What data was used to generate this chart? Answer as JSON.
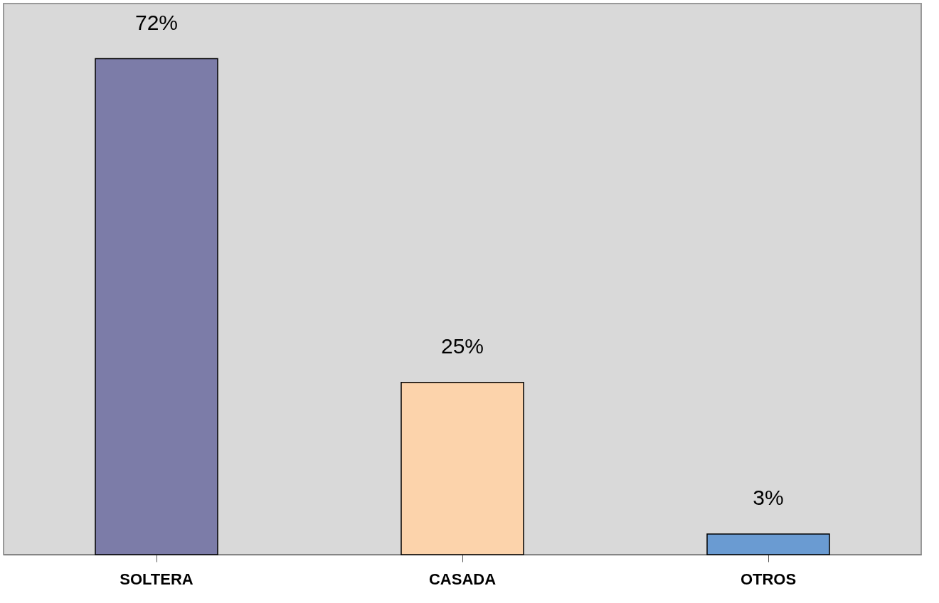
{
  "chart_data": {
    "type": "bar",
    "categories": [
      "SOLTERA",
      "CASADA",
      "OTROS"
    ],
    "values": [
      72,
      25,
      3
    ],
    "value_labels": [
      "72%",
      "25%",
      "3%"
    ],
    "colors": [
      "#7c7ca8",
      "#fcd3ab",
      "#6a9bd2"
    ]
  }
}
